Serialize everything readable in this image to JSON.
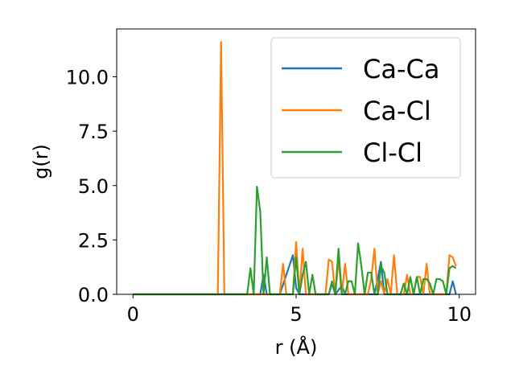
{
  "chart_data": {
    "type": "line",
    "xlabel": "r (Å)",
    "ylabel": "g(r)",
    "xlim": [
      -0.5,
      10.5
    ],
    "ylim": [
      0,
      12.2
    ],
    "xticks": [
      0,
      5,
      10
    ],
    "xtick_labels": [
      "0",
      "5",
      "10"
    ],
    "yticks": [
      0,
      2.5,
      5,
      7.5,
      10
    ],
    "ytick_labels": [
      "0.0",
      "2.5",
      "5.0",
      "7.5",
      "10.0"
    ],
    "grid": false,
    "legend_position": "top-right",
    "series": [
      {
        "name": "Ca-Ca",
        "color": "#1f77b4",
        "x": [
          0,
          2.5,
          3.5,
          3.9,
          4.0,
          4.1,
          4.2,
          4.5,
          4.9,
          5.0,
          5.1,
          5.5,
          6.0,
          6.1,
          6.2,
          6.4,
          6.5,
          6.6,
          7.0,
          7.4,
          7.5,
          7.6,
          7.7,
          8.0,
          8.5,
          9.0,
          9.5,
          9.7,
          9.8,
          9.9
        ],
        "y": [
          0,
          0,
          0,
          0,
          0.9,
          0,
          0,
          0,
          1.8,
          0.3,
          0,
          0,
          0,
          0.5,
          0,
          0.4,
          0,
          0,
          0,
          0,
          0.7,
          1.5,
          0,
          0,
          0,
          0,
          0,
          0,
          0.6,
          0
        ]
      },
      {
        "name": "Ca-Cl",
        "color": "#ff7f0e",
        "x": [
          0,
          2.6,
          2.7,
          2.8,
          2.9,
          3.5,
          4.5,
          4.6,
          4.7,
          4.9,
          5.0,
          5.1,
          5.2,
          5.3,
          5.4,
          5.5,
          5.9,
          6.0,
          6.1,
          6.2,
          6.3,
          6.4,
          6.5,
          6.6,
          6.7,
          7.2,
          7.3,
          7.4,
          7.5,
          7.6,
          7.7,
          7.8,
          7.9,
          8.0,
          8.1,
          8.2,
          8.3,
          8.4,
          8.5,
          8.6,
          8.7,
          8.8,
          8.9,
          9.0,
          9.1,
          9.2,
          9.3,
          9.4,
          9.5,
          9.6,
          9.7,
          9.8,
          9.9
        ],
        "y": [
          0,
          0,
          11.6,
          0,
          0,
          0,
          0,
          1.4,
          0,
          0,
          2.4,
          0,
          2.1,
          0,
          0,
          0,
          0,
          1.6,
          1.5,
          0,
          1.6,
          0,
          1.4,
          0,
          0,
          0,
          0.7,
          2.1,
          0,
          0.6,
          0,
          0.7,
          0,
          1.8,
          0,
          0,
          0,
          0.9,
          0,
          0,
          0.8,
          0.8,
          0,
          1.4,
          0,
          0,
          0,
          0,
          0,
          0,
          1.8,
          1.7,
          1.3
        ]
      },
      {
        "name": "Cl-Cl",
        "color": "#2ca02c",
        "x": [
          0,
          3.4,
          3.5,
          3.6,
          3.7,
          3.8,
          3.9,
          4.0,
          4.1,
          4.2,
          4.3,
          4.4,
          4.8,
          4.9,
          5.0,
          5.1,
          5.2,
          5.3,
          5.4,
          5.5,
          5.6,
          5.7,
          5.8,
          5.9,
          6.0,
          6.1,
          6.2,
          6.3,
          6.4,
          6.5,
          6.6,
          6.7,
          6.8,
          6.9,
          7.0,
          7.1,
          7.2,
          7.3,
          7.4,
          7.5,
          7.6,
          7.7,
          7.8,
          7.9,
          8.0,
          8.1,
          8.2,
          8.3,
          8.4,
          8.5,
          8.6,
          8.7,
          8.8,
          8.9,
          9.0,
          9.1,
          9.2,
          9.3,
          9.4,
          9.5,
          9.6,
          9.7,
          9.8,
          9.9
        ],
        "y": [
          0,
          0,
          0,
          1.2,
          0,
          4.95,
          3.8,
          0,
          1.7,
          0,
          0,
          0,
          0,
          0,
          1.7,
          0,
          0.9,
          1.5,
          0,
          0.9,
          0,
          0,
          0,
          0,
          0,
          0.6,
          0,
          2.1,
          0,
          0,
          0.6,
          0.6,
          0,
          2.35,
          1.3,
          0,
          1.0,
          1.0,
          0,
          0,
          1.3,
          1.0,
          0,
          0,
          0,
          0,
          0,
          0.5,
          0,
          0.8,
          0,
          0.8,
          0,
          0.7,
          0.7,
          0.5,
          0,
          0.7,
          0.7,
          0.6,
          0,
          1.2,
          1.3,
          1.2
        ]
      }
    ]
  }
}
